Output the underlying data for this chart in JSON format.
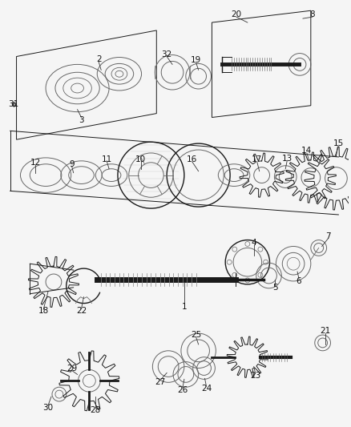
{
  "bg_color": "#f5f5f5",
  "fig_width": 4.38,
  "fig_height": 5.33,
  "dpi": 100,
  "lc": "#1a1a1a",
  "gray": "#666666",
  "lgray": "#999999"
}
